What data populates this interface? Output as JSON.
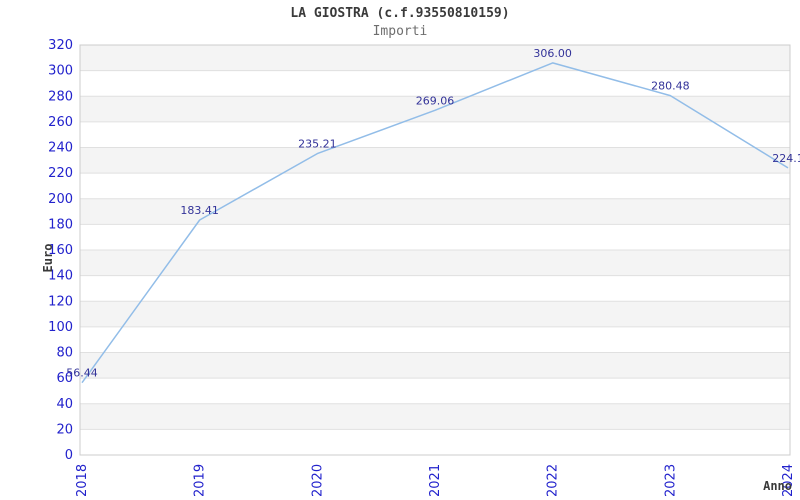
{
  "chart_data": {
    "type": "line",
    "title": "LA GIOSTRA (c.f.93550810159)",
    "subtitle": "Importi",
    "xlabel": "Anno",
    "ylabel": "Euro",
    "categories": [
      "2018",
      "2019",
      "2020",
      "2021",
      "2022",
      "2023",
      "2024"
    ],
    "series": [
      {
        "name": "Importi",
        "values": [
          56.44,
          183.41,
          235.21,
          269.06,
          306.0,
          280.48,
          224.1
        ],
        "value_labels": [
          "56.44",
          "183.41",
          "235.21",
          "269.06",
          "306.00",
          "280.48",
          "224.1"
        ]
      }
    ],
    "ylim": [
      0,
      320
    ],
    "ytick_step": 20,
    "grid": "horizontal-bands-alternating",
    "legend_position": "none",
    "colors": {
      "line": "#92bde8",
      "tick_label": "#2222cc",
      "value_label": "#333399",
      "band_gray": "#f4f4f4",
      "band_white": "#ffffff",
      "gridline": "#e0e0e0",
      "plot_border": "#cccccc",
      "title_text": "#3a3a3a",
      "subtitle_text": "#6e6e6e"
    }
  }
}
